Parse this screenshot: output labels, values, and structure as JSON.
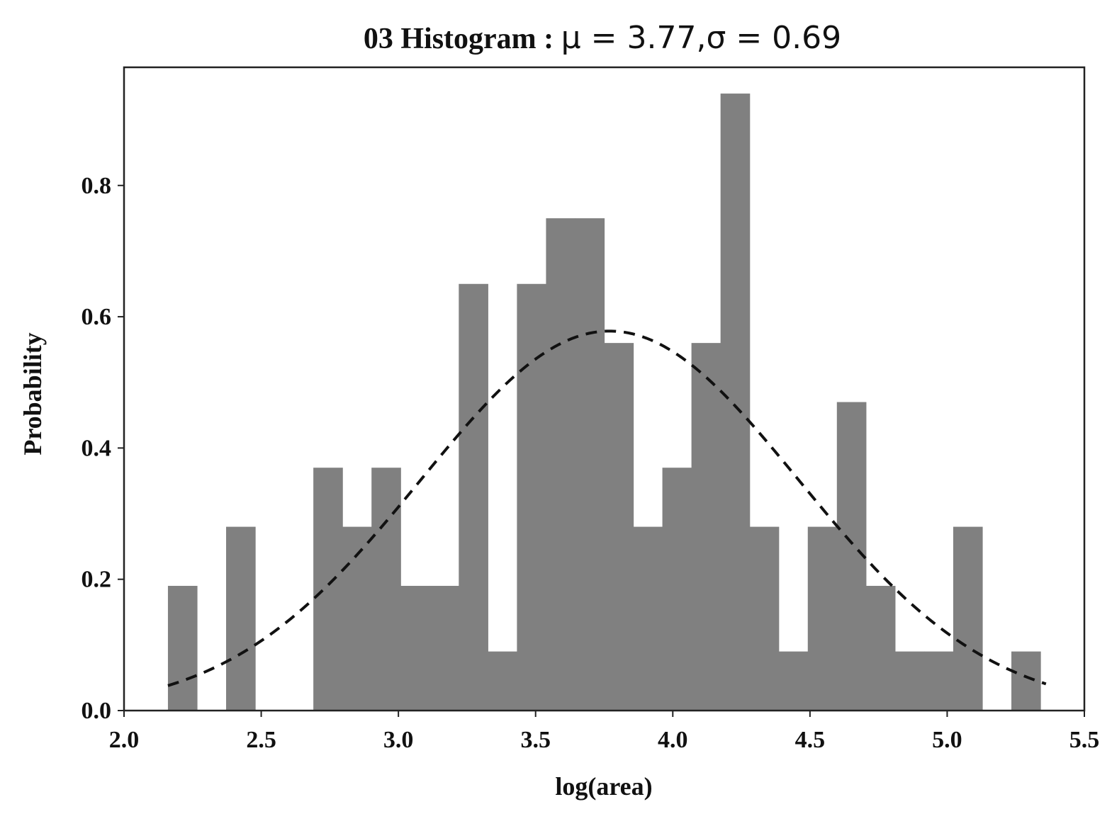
{
  "chart_data": {
    "type": "bar",
    "title": "03 Histogram : ",
    "title_math": "μ = 3.77,σ = 0.69",
    "xlabel": "log(area)",
    "ylabel": "Probability",
    "xlim": [
      2.0,
      5.5
    ],
    "ylim": [
      0.0,
      0.98
    ],
    "xticks": [
      "2.0",
      "2.5",
      "3.0",
      "3.5",
      "4.0",
      "4.5",
      "5.0",
      "5.5"
    ],
    "yticks": [
      "0.0",
      "0.2",
      "0.4",
      "0.6",
      "0.8"
    ],
    "grid": false,
    "bar_color": "#808080",
    "curve_color": "#111111",
    "bin_edges": [
      2.16,
      2.266,
      2.372,
      2.478,
      2.584,
      2.69,
      2.796,
      2.902,
      3.008,
      3.114,
      3.22,
      3.326,
      3.432,
      3.538,
      3.644,
      3.75,
      3.856,
      3.962,
      4.068,
      4.174,
      4.28,
      4.386,
      4.492,
      4.598,
      4.704,
      4.81,
      4.916,
      5.022,
      5.128,
      5.234,
      5.34
    ],
    "values": [
      0.19,
      0,
      0.28,
      0,
      0,
      0.37,
      0.28,
      0.37,
      0.19,
      0.19,
      0.65,
      0.09,
      0.65,
      0.75,
      0.75,
      0.56,
      0.28,
      0.37,
      0.56,
      0.94,
      0.28,
      0.09,
      0.28,
      0.47,
      0.19,
      0.09,
      0.09,
      0.28,
      0,
      0.09
    ],
    "series": [
      {
        "name": "",
        "type": "normal-pdf-dashed",
        "mu": 3.77,
        "sigma": 0.69,
        "x_range": [
          2.16,
          5.36
        ]
      }
    ]
  }
}
